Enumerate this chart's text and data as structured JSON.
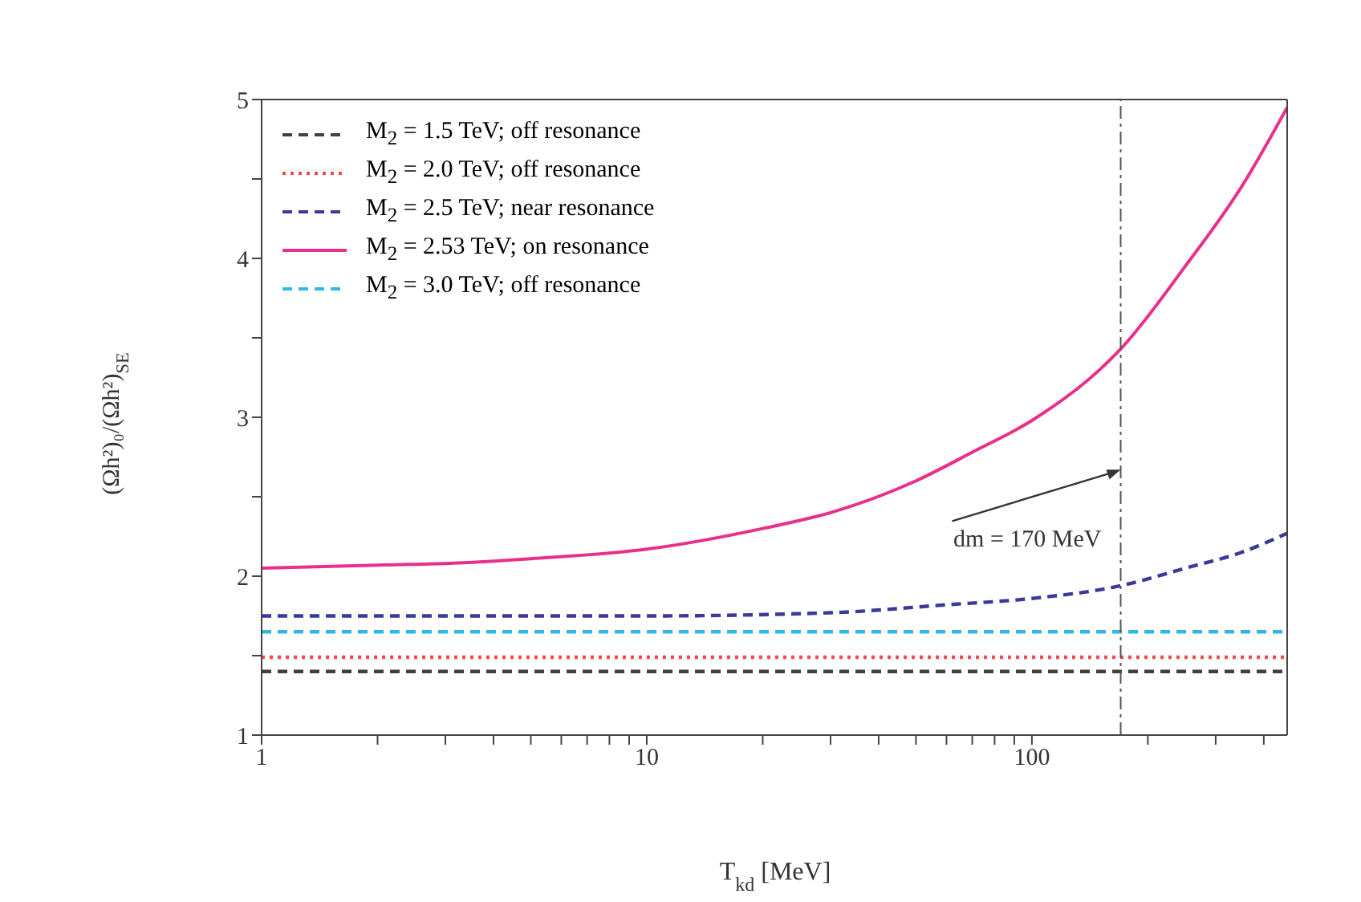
{
  "chart_data": {
    "type": "line",
    "xlabel": "T$_{kd}$ [MeV]",
    "ylabel": "(Ωh²)₀/(Ωh²)$_{SE}$",
    "log": "x",
    "xlim": [
      1,
      460
    ],
    "xticks": [
      1,
      {
        "value": 2,
        "label": null
      },
      {
        "value": 3,
        "label": null
      },
      {
        "value": 4,
        "label": null
      },
      {
        "value": 5,
        "label": null
      },
      {
        "value": 6,
        "label": null
      },
      {
        "value": 7,
        "label": null
      },
      {
        "value": 8,
        "label": null
      },
      {
        "value": 9,
        "label": null
      },
      10,
      {
        "value": 20,
        "label": null
      },
      {
        "value": 30,
        "label": null
      },
      {
        "value": 40,
        "label": null
      },
      {
        "value": 50,
        "label": null
      },
      {
        "value": 60,
        "label": null
      },
      {
        "value": 70,
        "label": null
      },
      {
        "value": 80,
        "label": null
      },
      {
        "value": 90,
        "label": null
      },
      100,
      {
        "value": 200,
        "label": null
      },
      {
        "value": 300,
        "label": null
      },
      {
        "value": 400,
        "label": null
      }
    ],
    "ylim": [
      1,
      5
    ],
    "yticks": [
      1,
      {
        "value": 1.5,
        "label": null
      },
      2,
      {
        "value": 2.5,
        "label": null
      },
      3,
      {
        "value": 3.5,
        "label": null
      },
      4,
      {
        "value": 4.5,
        "label": null
      },
      5
    ],
    "legend": "top left",
    "marker": "none",
    "series": [
      {
        "name": "M$_{2}$ = 1.5 TeV; off resonance",
        "color": "#404040",
        "line_style": "dashed",
        "x": [
          1,
          460
        ],
        "values": [
          1.4,
          1.4
        ]
      },
      {
        "name": "M$_{2}$ = 2.0 TeV; off resonance",
        "color": "#ff4a4a",
        "line_style": "dotted",
        "x": [
          1,
          460
        ],
        "values": [
          1.49,
          1.49
        ]
      },
      {
        "name": "M$_{2}$ = 2.5 TeV; near resonance",
        "color": "#3a3a9a",
        "line_style": "dashed",
        "x": [
          1,
          10,
          30,
          60,
          100,
          170,
          250,
          350,
          460
        ],
        "values": [
          1.75,
          1.75,
          1.77,
          1.82,
          1.86,
          1.94,
          2.05,
          2.15,
          2.27
        ]
      },
      {
        "name": "M$_{2}$ = 2.53 TeV; on resonance",
        "color": "#e8308a",
        "line_style": "solid",
        "x": [
          1,
          2,
          3,
          5,
          10,
          20,
          30,
          50,
          70,
          100,
          150,
          170,
          250,
          350,
          460
        ],
        "values": [
          2.05,
          2.07,
          2.08,
          2.11,
          2.17,
          2.3,
          2.4,
          2.6,
          2.78,
          2.98,
          3.3,
          3.43,
          3.95,
          4.45,
          4.95
        ]
      },
      {
        "name": "M$_{2}$ = 3.0 TeV; off resonance",
        "color": "#30b8e0",
        "line_style": "dashed",
        "x": [
          1,
          460
        ],
        "values": [
          1.65,
          1.65
        ]
      }
    ],
    "ref_lines": [
      {
        "axis": "x",
        "value": 170,
        "color": "#555555",
        "line_style": "dashed"
      }
    ],
    "annotations": [
      {
        "text": "dm = 170 MeV",
        "x": 170,
        "y": 2.67
      }
    ]
  }
}
